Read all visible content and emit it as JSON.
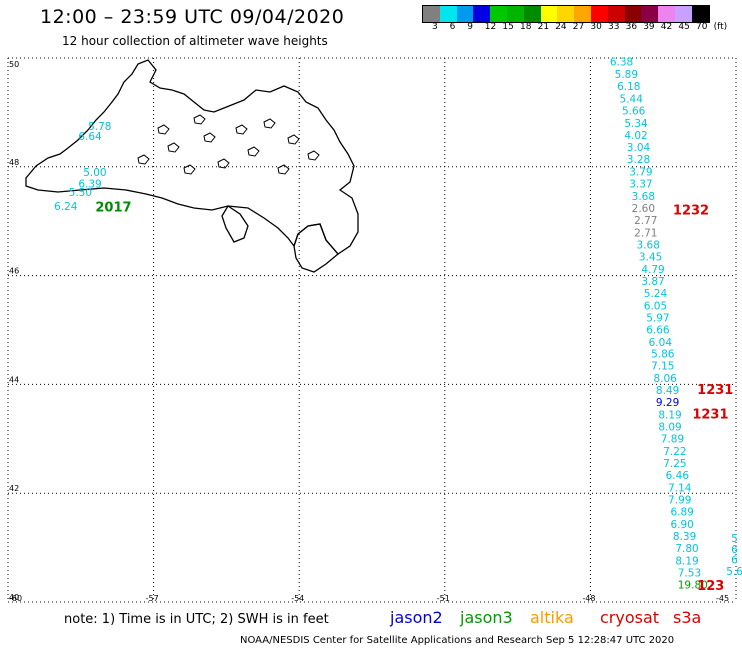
{
  "title": "12:00 – 23:59 UTC 09/04/2020",
  "subtitle": "12 hour collection of altimeter wave heights",
  "legend": {
    "colors": [
      "#808080",
      "#00e5ee",
      "#009aee",
      "#0000e0",
      "#00c800",
      "#00b400",
      "#008b00",
      "#ffff00",
      "#ffd700",
      "#ffa500",
      "#ff0000",
      "#cd0000",
      "#8b0000",
      "#8b0045",
      "#ee82ee",
      "#c8a0ff",
      "#000000"
    ],
    "labels": [
      "3",
      "6",
      "9",
      "12",
      "15",
      "18",
      "21",
      "24",
      "27",
      "30",
      "33",
      "36",
      "39",
      "42",
      "45",
      "70",
      "(ft)"
    ]
  },
  "map": {
    "lat_labels": [
      "50",
      "48",
      "46",
      "44",
      "42",
      "40"
    ],
    "lon_labels": [
      "-60",
      "-57",
      "-54",
      "-51",
      "-48",
      "-45"
    ],
    "region": "Newfoundland",
    "observations": [
      {
        "lon": -59.05,
        "lat": 47.21,
        "text": "6.24",
        "color": "#00c5dd"
      },
      {
        "lon": -58.75,
        "lat": 47.46,
        "text": "5.50",
        "color": "#00c5dd"
      },
      {
        "lon": -58.55,
        "lat": 47.62,
        "text": "6.39",
        "color": "#00c5dd"
      },
      {
        "lon": -58.45,
        "lat": 47.83,
        "text": "5.00",
        "color": "#00c5dd"
      },
      {
        "lon": -58.55,
        "lat": 48.49,
        "text": "6.64",
        "color": "#00c5dd"
      },
      {
        "lon": -58.35,
        "lat": 48.68,
        "text": "5.78",
        "color": "#00c5dd"
      },
      {
        "lon": -47.6,
        "lat": 49.86,
        "text": "6.38",
        "color": "#00c5dd"
      },
      {
        "lon": -47.5,
        "lat": 49.63,
        "text": "5.89",
        "color": "#00c5dd"
      },
      {
        "lon": -47.45,
        "lat": 49.41,
        "text": "6.18",
        "color": "#00c5dd"
      },
      {
        "lon": -47.4,
        "lat": 49.18,
        "text": "5.44",
        "color": "#00c5dd"
      },
      {
        "lon": -47.35,
        "lat": 48.96,
        "text": "5.66",
        "color": "#00c5dd"
      },
      {
        "lon": -47.3,
        "lat": 48.73,
        "text": "5.34",
        "color": "#00c5dd"
      },
      {
        "lon": -47.3,
        "lat": 48.51,
        "text": "4.02",
        "color": "#00c5dd"
      },
      {
        "lon": -47.25,
        "lat": 48.29,
        "text": "3.04",
        "color": "#00c5dd"
      },
      {
        "lon": -47.25,
        "lat": 48.07,
        "text": "3.28",
        "color": "#00c5dd"
      },
      {
        "lon": -47.2,
        "lat": 47.84,
        "text": "3.79",
        "color": "#00c5dd"
      },
      {
        "lon": -47.2,
        "lat": 47.62,
        "text": "3.37",
        "color": "#00c5dd"
      },
      {
        "lon": -47.15,
        "lat": 47.39,
        "text": "3.68",
        "color": "#00c5dd"
      },
      {
        "lon": -47.15,
        "lat": 47.17,
        "text": "2.60",
        "color": "#808080"
      },
      {
        "lon": -47.1,
        "lat": 46.95,
        "text": "2.77",
        "color": "#808080"
      },
      {
        "lon": -47.1,
        "lat": 46.72,
        "text": "2.71",
        "color": "#808080"
      },
      {
        "lon": -47.05,
        "lat": 46.5,
        "text": "3.68",
        "color": "#00c5dd"
      },
      {
        "lon": -47.0,
        "lat": 46.28,
        "text": "3.45",
        "color": "#00c5dd"
      },
      {
        "lon": -46.95,
        "lat": 46.05,
        "text": "4.79",
        "color": "#00c5dd"
      },
      {
        "lon": -46.95,
        "lat": 45.83,
        "text": "3.87",
        "color": "#00c5dd"
      },
      {
        "lon": -46.9,
        "lat": 45.61,
        "text": "5.24",
        "color": "#00c5dd"
      },
      {
        "lon": -46.9,
        "lat": 45.38,
        "text": "6.05",
        "color": "#00c5dd"
      },
      {
        "lon": -46.85,
        "lat": 45.16,
        "text": "5.97",
        "color": "#00c5dd"
      },
      {
        "lon": -46.85,
        "lat": 44.94,
        "text": "6.66",
        "color": "#00c5dd"
      },
      {
        "lon": -46.8,
        "lat": 44.71,
        "text": "6.04",
        "color": "#00c5dd"
      },
      {
        "lon": -46.75,
        "lat": 44.49,
        "text": "5.86",
        "color": "#00c5dd"
      },
      {
        "lon": -46.75,
        "lat": 44.27,
        "text": "7.15",
        "color": "#00c5dd"
      },
      {
        "lon": -46.7,
        "lat": 44.04,
        "text": "8.06",
        "color": "#00c5dd"
      },
      {
        "lon": -46.65,
        "lat": 43.82,
        "text": "8.49",
        "color": "#00c5dd"
      },
      {
        "lon": -46.65,
        "lat": 43.6,
        "text": "9.29",
        "color": "#0000e0"
      },
      {
        "lon": -46.6,
        "lat": 43.37,
        "text": "8.19",
        "color": "#00c5dd"
      },
      {
        "lon": -46.6,
        "lat": 43.15,
        "text": "8.09",
        "color": "#00c5dd"
      },
      {
        "lon": -46.55,
        "lat": 42.93,
        "text": "7.89",
        "color": "#00c5dd"
      },
      {
        "lon": -46.5,
        "lat": 42.7,
        "text": "7.22",
        "color": "#00c5dd"
      },
      {
        "lon": -46.5,
        "lat": 42.48,
        "text": "7.25",
        "color": "#00c5dd"
      },
      {
        "lon": -46.45,
        "lat": 42.26,
        "text": "6.46",
        "color": "#00c5dd"
      },
      {
        "lon": -46.4,
        "lat": 42.03,
        "text": "7.14",
        "color": "#00c5dd"
      },
      {
        "lon": -46.4,
        "lat": 41.81,
        "text": "7.99",
        "color": "#00c5dd"
      },
      {
        "lon": -46.35,
        "lat": 41.59,
        "text": "6.89",
        "color": "#00c5dd"
      },
      {
        "lon": -46.35,
        "lat": 41.36,
        "text": "6.90",
        "color": "#00c5dd"
      },
      {
        "lon": -46.3,
        "lat": 41.14,
        "text": "8.39",
        "color": "#00c5dd"
      },
      {
        "lon": -46.25,
        "lat": 40.92,
        "text": "7.80",
        "color": "#00c5dd"
      },
      {
        "lon": -46.25,
        "lat": 40.69,
        "text": "8.19",
        "color": "#00c5dd"
      },
      {
        "lon": -46.2,
        "lat": 40.47,
        "text": "7.53",
        "color": "#00c5dd"
      },
      {
        "lon": -46.2,
        "lat": 40.25,
        "text": "19.80",
        "color": "#00a000"
      },
      {
        "lon": -45.1,
        "lat": 41.1,
        "text": "5",
        "color": "#00c5dd"
      },
      {
        "lon": -45.1,
        "lat": 40.9,
        "text": "6",
        "color": "#00c5dd"
      },
      {
        "lon": -45.1,
        "lat": 40.71,
        "text": "6",
        "color": "#00c5dd"
      },
      {
        "lon": -45.2,
        "lat": 40.5,
        "text": "5.6",
        "color": "#00c5dd"
      }
    ],
    "pass_labels": [
      {
        "lon": -58.2,
        "lat": 47.18,
        "text": "2017",
        "color": "#008b00"
      },
      {
        "lon": -46.3,
        "lat": 47.12,
        "text": "1232",
        "color": "#dd0000"
      },
      {
        "lon": -45.8,
        "lat": 43.82,
        "text": "1231",
        "color": "#dd0000"
      },
      {
        "lon": -45.9,
        "lat": 43.37,
        "text": "1231",
        "color": "#dd0000"
      },
      {
        "lon": -45.8,
        "lat": 40.22,
        "text": "123",
        "color": "#dd0000"
      }
    ]
  },
  "note": "note:  1) Time is in UTC;  2) SWH is in feet",
  "satellites": [
    {
      "name": "jason2",
      "color": "#0000dd"
    },
    {
      "name": "jason3",
      "color": "#009a00"
    },
    {
      "name": "altika",
      "color": "#ff9900"
    },
    {
      "name": "cryosat",
      "color": "#dd0000"
    },
    {
      "name": "s3a",
      "color": "#dd0000"
    }
  ],
  "footer": "NOAA/NESDIS Center for Satellite Applications and Research    Sep  5 12:28:47 UTC 2020"
}
